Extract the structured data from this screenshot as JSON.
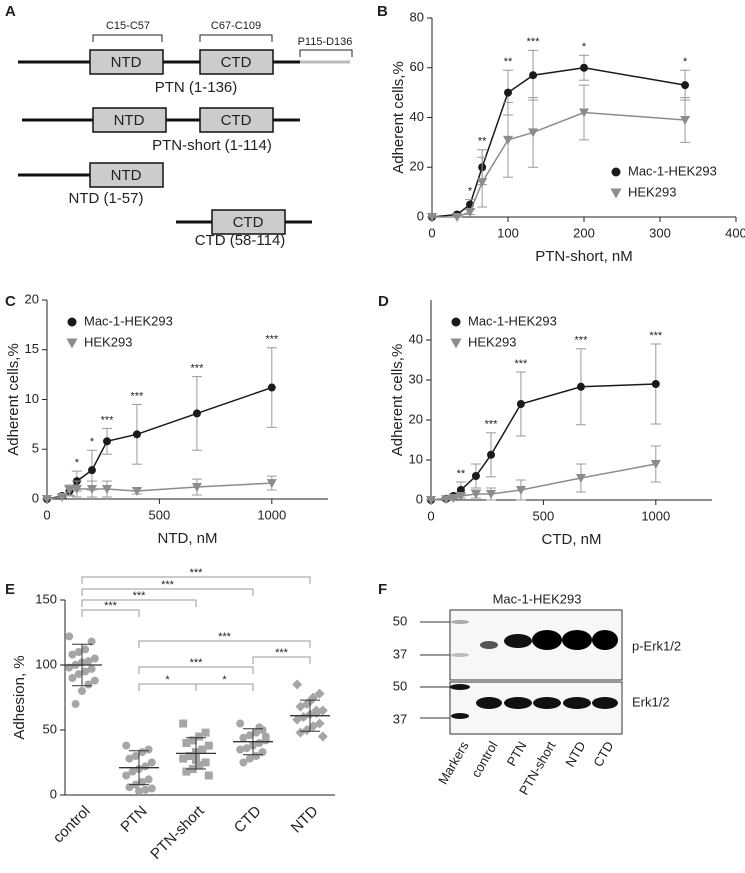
{
  "diagram": {
    "panel_label": "A",
    "region_labels": [
      "C15-C57",
      "C67-C109",
      "P115-D136"
    ],
    "constructs": [
      {
        "name": "PTN (1-136)",
        "domains": [
          "NTD",
          "CTD"
        ]
      },
      {
        "name": "PTN-short (1-114)",
        "domains": [
          "NTD",
          "CTD"
        ]
      },
      {
        "name": "NTD (1-57)",
        "domains": [
          "NTD"
        ]
      },
      {
        "name": "CTD (58-114)",
        "domains": [
          "CTD"
        ]
      }
    ]
  },
  "chart_data": [
    {
      "type": "line",
      "panel_label": "B",
      "xlabel": "PTN-short, nM",
      "ylabel": "Adherent cells,%",
      "x": [
        0,
        33,
        50,
        66,
        100,
        133,
        200,
        333
      ],
      "xlim": [
        0,
        400
      ],
      "xticks": [
        0,
        100,
        200,
        300,
        400
      ],
      "ylim": [
        0,
        80
      ],
      "yticks": [
        0,
        20,
        40,
        60,
        80
      ],
      "legend": "lower right",
      "series": [
        {
          "name": "Mac-1-HEK293",
          "color": "#1a1a1a",
          "marker": "circle",
          "values": [
            0,
            1,
            5,
            20,
            50,
            57,
            60,
            53
          ],
          "errors": [
            0,
            0.5,
            2,
            7,
            9,
            10,
            5,
            6
          ],
          "significance": [
            null,
            null,
            "*",
            "**",
            "**",
            "***",
            "*",
            "*"
          ]
        },
        {
          "name": "HEK293",
          "color": "#8c8c8c",
          "marker": "triangle-down",
          "values": [
            0,
            0,
            2,
            14,
            31,
            34,
            42,
            39
          ],
          "errors": [
            0,
            0,
            1,
            10,
            15,
            14,
            11,
            9
          ]
        }
      ]
    },
    {
      "type": "line",
      "panel_label": "C",
      "xlabel": "NTD, nM",
      "ylabel": "Adherent cells,%",
      "x": [
        0,
        67,
        100,
        133,
        200,
        267,
        400,
        667,
        1000
      ],
      "xlim": [
        0,
        1250
      ],
      "xticks": [
        0,
        500,
        1000
      ],
      "ylim": [
        0,
        20
      ],
      "yticks": [
        0,
        5,
        10,
        15,
        20
      ],
      "legend": "upper left",
      "series": [
        {
          "name": "Mac-1-HEK293",
          "color": "#1a1a1a",
          "marker": "circle",
          "values": [
            0,
            0.3,
            0.8,
            1.8,
            2.9,
            5.8,
            6.5,
            8.6,
            11.2
          ],
          "errors": [
            0,
            0.2,
            0.5,
            1,
            2,
            1.3,
            3,
            3.7,
            4
          ],
          "significance": [
            null,
            null,
            null,
            "*",
            "*",
            "***",
            "***",
            "***",
            "***"
          ]
        },
        {
          "name": "HEK293",
          "color": "#8c8c8c",
          "marker": "triangle-down",
          "values": [
            0,
            0.2,
            0.9,
            1,
            1,
            1,
            0.8,
            1.2,
            1.6
          ],
          "errors": [
            0,
            0.1,
            0.5,
            0.8,
            0.8,
            0.8,
            0.3,
            0.8,
            0.7
          ]
        }
      ]
    },
    {
      "type": "line",
      "panel_label": "D",
      "xlabel": "CTD, nM",
      "ylabel": "Adherent cells,%",
      "x": [
        0,
        67,
        100,
        133,
        200,
        267,
        400,
        667,
        1000
      ],
      "xlim": [
        0,
        1250
      ],
      "xticks": [
        0,
        500,
        1000
      ],
      "ylim": [
        0,
        50
      ],
      "yticks": [
        0,
        10,
        20,
        30,
        40
      ],
      "legend": "upper left",
      "series": [
        {
          "name": "Mac-1-HEK293",
          "color": "#1a1a1a",
          "marker": "circle",
          "values": [
            0,
            0.3,
            1,
            2.5,
            6,
            11.3,
            24,
            28.3,
            29
          ],
          "errors": [
            0,
            0.2,
            0.5,
            2,
            3,
            5.5,
            8,
            9.5,
            10
          ],
          "significance": [
            null,
            null,
            null,
            "**",
            null,
            "***",
            "***",
            "***",
            "***"
          ]
        },
        {
          "name": "HEK293",
          "color": "#8c8c8c",
          "marker": "triangle-down",
          "values": [
            0,
            0.2,
            0.5,
            1,
            1.5,
            1.5,
            2.5,
            5.5,
            9
          ],
          "errors": [
            0,
            0,
            0.3,
            0.5,
            1,
            1.5,
            2.5,
            3.5,
            4.5
          ]
        }
      ]
    },
    {
      "type": "dotplot",
      "panel_label": "E",
      "ylabel": "Adhesion, %",
      "categories": [
        "control",
        "PTN",
        "PTN-short",
        "CTD",
        "NTD"
      ],
      "markers": [
        "circle",
        "circle",
        "square",
        "circle",
        "diamond"
      ],
      "color": "#a6a6a6",
      "values": [
        [
          122,
          118,
          112,
          110,
          108,
          105,
          103,
          102,
          100,
          98,
          97,
          95,
          93,
          90,
          88,
          85,
          80,
          70
        ],
        [
          38,
          35,
          33,
          30,
          28,
          25,
          22,
          20,
          18,
          15,
          12,
          10,
          8,
          6,
          5,
          4,
          3
        ],
        [
          55,
          48,
          45,
          42,
          40,
          38,
          35,
          33,
          30,
          28,
          25,
          23,
          20,
          18,
          15,
          35,
          27
        ],
        [
          55,
          50,
          48,
          46,
          44,
          42,
          40,
          38,
          36,
          35,
          33,
          30,
          28,
          25,
          45,
          52
        ],
        [
          85,
          78,
          75,
          70,
          68,
          65,
          63,
          62,
          60,
          58,
          55,
          53,
          50,
          48,
          45,
          65,
          72
        ]
      ],
      "mean": [
        100,
        21,
        32,
        41,
        61
      ],
      "sd": [
        16,
        13,
        12,
        10,
        12
      ],
      "ylim": [
        0,
        150
      ],
      "yticks": [
        0,
        50,
        100,
        150
      ],
      "comparisons": [
        {
          "from": "control",
          "to": "PTN",
          "label": "***"
        },
        {
          "from": "control",
          "to": "PTN-short",
          "label": "***"
        },
        {
          "from": "control",
          "to": "CTD",
          "label": "***"
        },
        {
          "from": "control",
          "to": "NTD",
          "label": "***"
        },
        {
          "from": "PTN",
          "to": "NTD",
          "label": "***"
        },
        {
          "from": "PTN",
          "to": "CTD",
          "label": "***"
        },
        {
          "from": "PTN",
          "to": "PTN-short",
          "label": "*"
        },
        {
          "from": "PTN-short",
          "to": "CTD",
          "label": "*"
        },
        {
          "from": "CTD",
          "to": "NTD",
          "label": "***"
        }
      ]
    }
  ],
  "blot": {
    "panel_label": "F",
    "title": "Mac-1-HEK293",
    "marker_sizes": [
      "50",
      "37",
      "50",
      "37"
    ],
    "rows": [
      "p-Erk1/2",
      "Erk1/2"
    ],
    "lanes": [
      "Markers",
      "control",
      "PTN",
      "PTN-short",
      "NTD",
      "CTD"
    ]
  }
}
